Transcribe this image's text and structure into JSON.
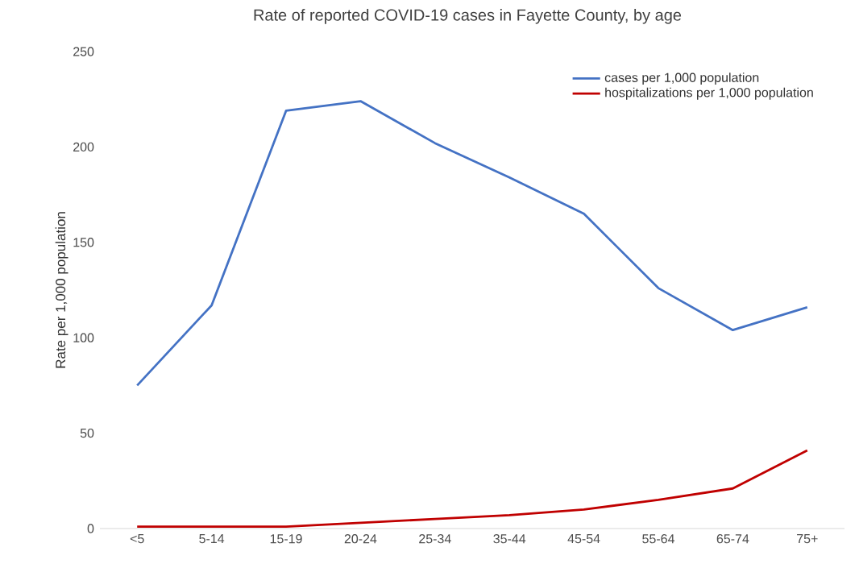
{
  "chart_data": {
    "type": "line",
    "title": "Rate of reported COVID-19 cases in Fayette County, by age",
    "ylabel": "Rate per 1,000 population",
    "categories": [
      "<5",
      "5-14",
      "15-19",
      "20-24",
      "25-34",
      "35-44",
      "45-54",
      "55-64",
      "65-74",
      "75+"
    ],
    "series": [
      {
        "name": "cases per 1,000 population",
        "color": "#4472c4",
        "values": [
          75,
          117,
          219,
          224,
          202,
          184,
          165,
          126,
          104,
          116
        ]
      },
      {
        "name": "hospitalizations per 1,000 population",
        "color": "#c00000",
        "values": [
          1,
          1,
          1,
          3,
          5,
          7,
          10,
          15,
          21,
          41
        ]
      }
    ],
    "ylim": [
      0,
      250
    ],
    "yticks": [
      0,
      50,
      100,
      150,
      200,
      250
    ],
    "legend": "top right",
    "marker": "none",
    "line_style": "solid"
  }
}
